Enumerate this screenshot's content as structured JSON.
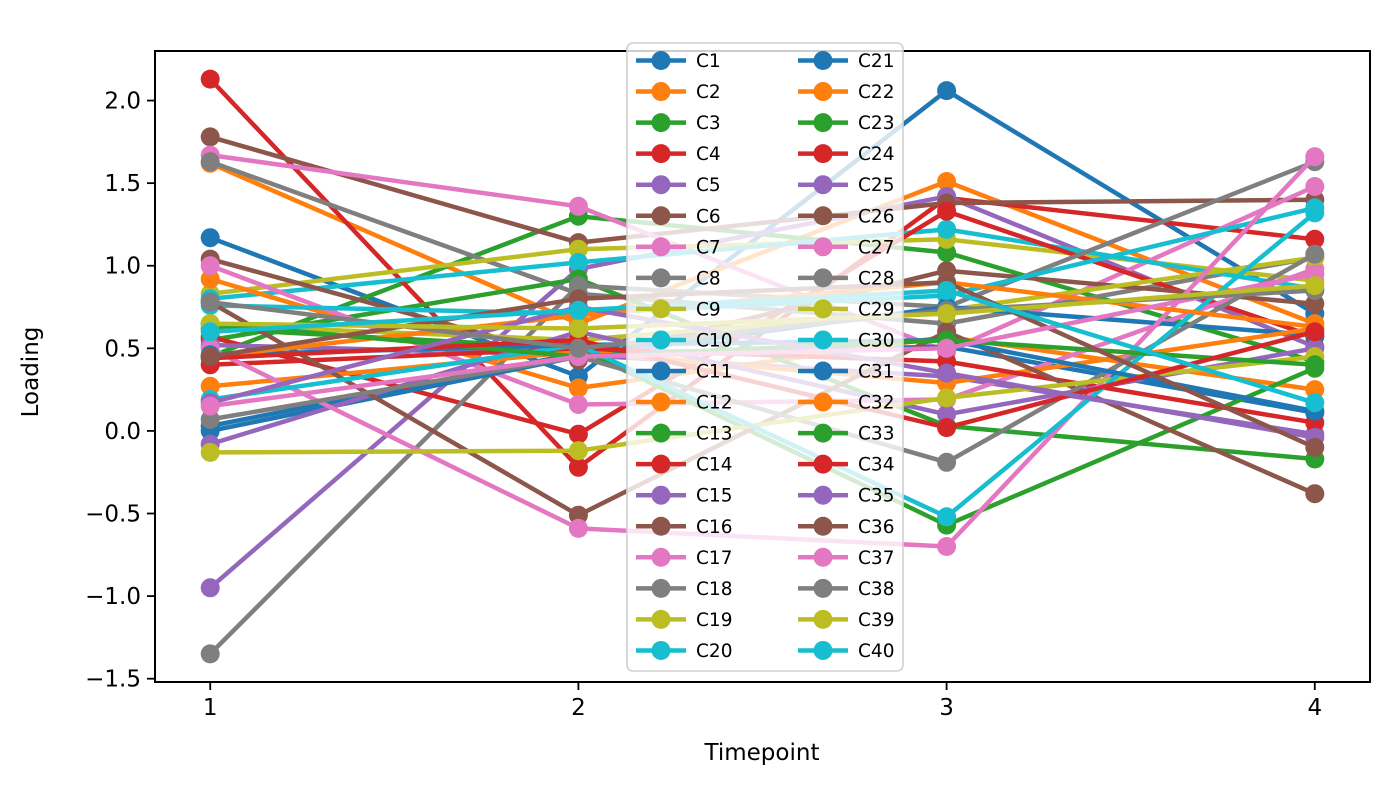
{
  "figure": {
    "background": "#ffffff",
    "axes_edge_color": "#000000",
    "legend_border_color": "#d0d0d0",
    "legend_fill": "#ffffff",
    "legend_opacity": 0.8
  },
  "chart_data": {
    "type": "line",
    "title": "",
    "xlabel": "Timepoint",
    "ylabel": "Loading",
    "x": [
      1,
      2,
      3,
      4
    ],
    "xlim": [
      0.85,
      4.15
    ],
    "ylim": [
      -1.52,
      2.3
    ],
    "xticks": [
      1,
      2,
      3,
      4
    ],
    "xtick_labels": [
      "1",
      "2",
      "3",
      "4"
    ],
    "yticks": [
      2.0,
      1.5,
      1.0,
      0.5,
      0.0,
      -0.5,
      -1.0,
      -1.5
    ],
    "ytick_labels": [
      "2.0",
      "1.5",
      "1.0",
      "0.5",
      "0.0",
      "−0.5",
      "−1.0",
      "−1.5"
    ],
    "grid": false,
    "marker": "circle",
    "legend": {
      "position": "upper center",
      "columns": 2,
      "fill_order": "column-major"
    },
    "series": [
      {
        "name": "C1",
        "color": "#1f77b4",
        "values": [
          1.17,
          0.33,
          2.06,
          0.71
        ]
      },
      {
        "name": "C2",
        "color": "#ff7f0e",
        "values": [
          1.62,
          0.65,
          1.51,
          0.65
        ]
      },
      {
        "name": "C3",
        "color": "#2ca02c",
        "values": [
          0.45,
          1.3,
          1.08,
          0.42
        ]
      },
      {
        "name": "C4",
        "color": "#d62728",
        "values": [
          2.13,
          -0.22,
          1.41,
          1.16
        ]
      },
      {
        "name": "C5",
        "color": "#9467bd",
        "values": [
          -0.95,
          0.98,
          1.42,
          0.51
        ]
      },
      {
        "name": "C6",
        "color": "#8c564b",
        "values": [
          1.78,
          1.14,
          1.38,
          1.4
        ]
      },
      {
        "name": "C7",
        "color": "#e377c2",
        "values": [
          1.67,
          1.36,
          0.48,
          1.48
        ]
      },
      {
        "name": "C8",
        "color": "#7f7f7f",
        "values": [
          1.63,
          0.83,
          0.65,
          1.05
        ]
      },
      {
        "name": "C9",
        "color": "#bcbd22",
        "values": [
          0.83,
          1.1,
          1.16,
          0.91
        ]
      },
      {
        "name": "C10",
        "color": "#17becf",
        "values": [
          0.8,
          1.02,
          1.22,
          0.86
        ]
      },
      {
        "name": "C11",
        "color": "#1f77b4",
        "values": [
          0.03,
          0.47,
          0.51,
          0.11
        ]
      },
      {
        "name": "C12",
        "color": "#ff7f0e",
        "values": [
          0.92,
          0.26,
          0.57,
          0.25
        ]
      },
      {
        "name": "C13",
        "color": "#2ca02c",
        "values": [
          0.55,
          0.92,
          0.03,
          -0.17
        ]
      },
      {
        "name": "C14",
        "color": "#d62728",
        "values": [
          0.57,
          -0.02,
          1.33,
          0.57
        ]
      },
      {
        "name": "C15",
        "color": "#9467bd",
        "values": [
          0.52,
          0.46,
          0.33,
          -0.02
        ]
      },
      {
        "name": "C16",
        "color": "#8c564b",
        "values": [
          1.04,
          0.43,
          0.97,
          0.77
        ]
      },
      {
        "name": "C17",
        "color": "#e377c2",
        "values": [
          1.0,
          0.16,
          0.19,
          0.98
        ]
      },
      {
        "name": "C18",
        "color": "#7f7f7f",
        "values": [
          -1.35,
          0.88,
          0.75,
          1.63
        ]
      },
      {
        "name": "C19",
        "color": "#bcbd22",
        "values": [
          0.64,
          0.55,
          0.73,
          1.05
        ]
      },
      {
        "name": "C20",
        "color": "#17becf",
        "values": [
          0.76,
          0.71,
          0.82,
          1.35
        ]
      },
      {
        "name": "C21",
        "color": "#1f77b4",
        "values": [
          0.0,
          0.45,
          0.75,
          0.58
        ]
      },
      {
        "name": "C22",
        "color": "#ff7f0e",
        "values": [
          0.27,
          0.48,
          0.29,
          0.62
        ]
      },
      {
        "name": "C23",
        "color": "#2ca02c",
        "values": [
          0.62,
          0.5,
          -0.57,
          0.38
        ]
      },
      {
        "name": "C24",
        "color": "#d62728",
        "values": [
          0.4,
          0.5,
          0.42,
          0.05
        ]
      },
      {
        "name": "C25",
        "color": "#9467bd",
        "values": [
          -0.08,
          0.6,
          0.1,
          0.5
        ]
      },
      {
        "name": "C26",
        "color": "#8c564b",
        "values": [
          0.78,
          -0.51,
          0.6,
          -0.38
        ]
      },
      {
        "name": "C27",
        "color": "#e377c2",
        "values": [
          0.5,
          -0.59,
          -0.7,
          1.66
        ]
      },
      {
        "name": "C28",
        "color": "#7f7f7f",
        "values": [
          0.07,
          0.45,
          -0.19,
          1.07
        ]
      },
      {
        "name": "C29",
        "color": "#bcbd22",
        "values": [
          -0.13,
          -0.12,
          0.2,
          0.45
        ]
      },
      {
        "name": "C30",
        "color": "#17becf",
        "values": [
          0.19,
          0.52,
          -0.52,
          1.32
        ]
      },
      {
        "name": "C31",
        "color": "#1f77b4",
        "values": [
          0.46,
          0.52,
          0.55,
          0.12
        ]
      },
      {
        "name": "C32",
        "color": "#ff7f0e",
        "values": [
          0.45,
          0.7,
          0.9,
          0.63
        ]
      },
      {
        "name": "C33",
        "color": "#2ca02c",
        "values": [
          0.65,
          0.45,
          0.55,
          0.4
        ]
      },
      {
        "name": "C34",
        "color": "#d62728",
        "values": [
          0.44,
          0.55,
          0.02,
          0.6
        ]
      },
      {
        "name": "C35",
        "color": "#9467bd",
        "values": [
          0.17,
          0.75,
          0.35,
          -0.04
        ]
      },
      {
        "name": "C36",
        "color": "#8c564b",
        "values": [
          0.45,
          0.8,
          0.9,
          -0.1
        ]
      },
      {
        "name": "C37",
        "color": "#e377c2",
        "values": [
          0.15,
          0.45,
          0.5,
          0.95
        ]
      },
      {
        "name": "C38",
        "color": "#7f7f7f",
        "values": [
          0.78,
          0.5,
          0.73,
          0.85
        ]
      },
      {
        "name": "C39",
        "color": "#bcbd22",
        "values": [
          0.65,
          0.62,
          0.71,
          0.88
        ]
      },
      {
        "name": "C40",
        "color": "#17becf",
        "values": [
          0.6,
          0.73,
          0.85,
          0.17
        ]
      }
    ]
  }
}
